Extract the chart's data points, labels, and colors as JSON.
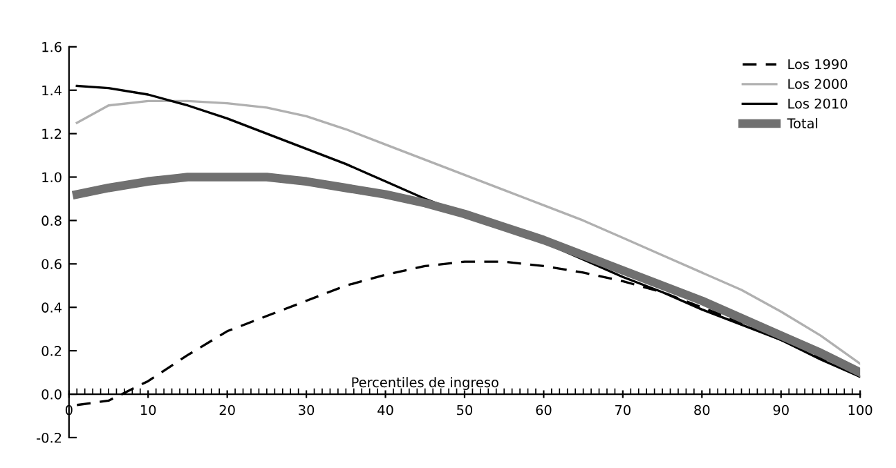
{
  "chart_data": {
    "type": "line",
    "xlabel": "Percentiles de ingreso",
    "x": [
      1,
      5,
      10,
      15,
      20,
      25,
      30,
      35,
      40,
      45,
      50,
      55,
      60,
      65,
      70,
      75,
      80,
      85,
      90,
      95,
      100
    ],
    "series": [
      {
        "name": "Los 1990",
        "color": "#000000",
        "line_style": "dashed",
        "values": [
          -0.05,
          -0.03,
          0.06,
          0.18,
          0.29,
          0.36,
          0.43,
          0.5,
          0.55,
          0.59,
          0.61,
          0.61,
          0.59,
          0.56,
          0.52,
          0.47,
          0.4,
          0.33,
          0.25,
          0.17,
          0.08
        ]
      },
      {
        "name": "Los 2000",
        "color": "#b0b0b0",
        "values": [
          1.25,
          1.33,
          1.35,
          1.35,
          1.34,
          1.32,
          1.28,
          1.22,
          1.15,
          1.08,
          1.01,
          0.94,
          0.87,
          0.8,
          0.72,
          0.64,
          0.56,
          0.48,
          0.38,
          0.27,
          0.14
        ]
      },
      {
        "name": "Los 2010",
        "color": "#000000",
        "values": [
          1.42,
          1.41,
          1.38,
          1.33,
          1.27,
          1.2,
          1.13,
          1.06,
          0.98,
          0.9,
          0.83,
          0.76,
          0.7,
          0.62,
          0.54,
          0.47,
          0.39,
          0.32,
          0.25,
          0.16,
          0.08
        ]
      },
      {
        "name": "Total",
        "color": "#707070",
        "values": [
          0.92,
          0.95,
          0.98,
          1.0,
          1.0,
          1.0,
          0.98,
          0.95,
          0.92,
          0.88,
          0.83,
          0.77,
          0.71,
          0.64,
          0.57,
          0.5,
          0.43,
          0.35,
          0.27,
          0.19,
          0.1
        ]
      }
    ],
    "xlim": [
      0,
      100
    ],
    "xticks": [
      0,
      10,
      20,
      30,
      40,
      50,
      60,
      70,
      80,
      90,
      100
    ],
    "ylim": [
      -0.2,
      1.6
    ],
    "yticks": [
      {
        "value": -0.2,
        "label": "-0.2"
      },
      {
        "value": 0,
        "label": "0.0"
      },
      0.2,
      0.4,
      0.6,
      0.8,
      {
        "value": 1,
        "label": "1.0"
      },
      1.2,
      1.4,
      1.6
    ],
    "legend": "top right",
    "grid": false
  }
}
